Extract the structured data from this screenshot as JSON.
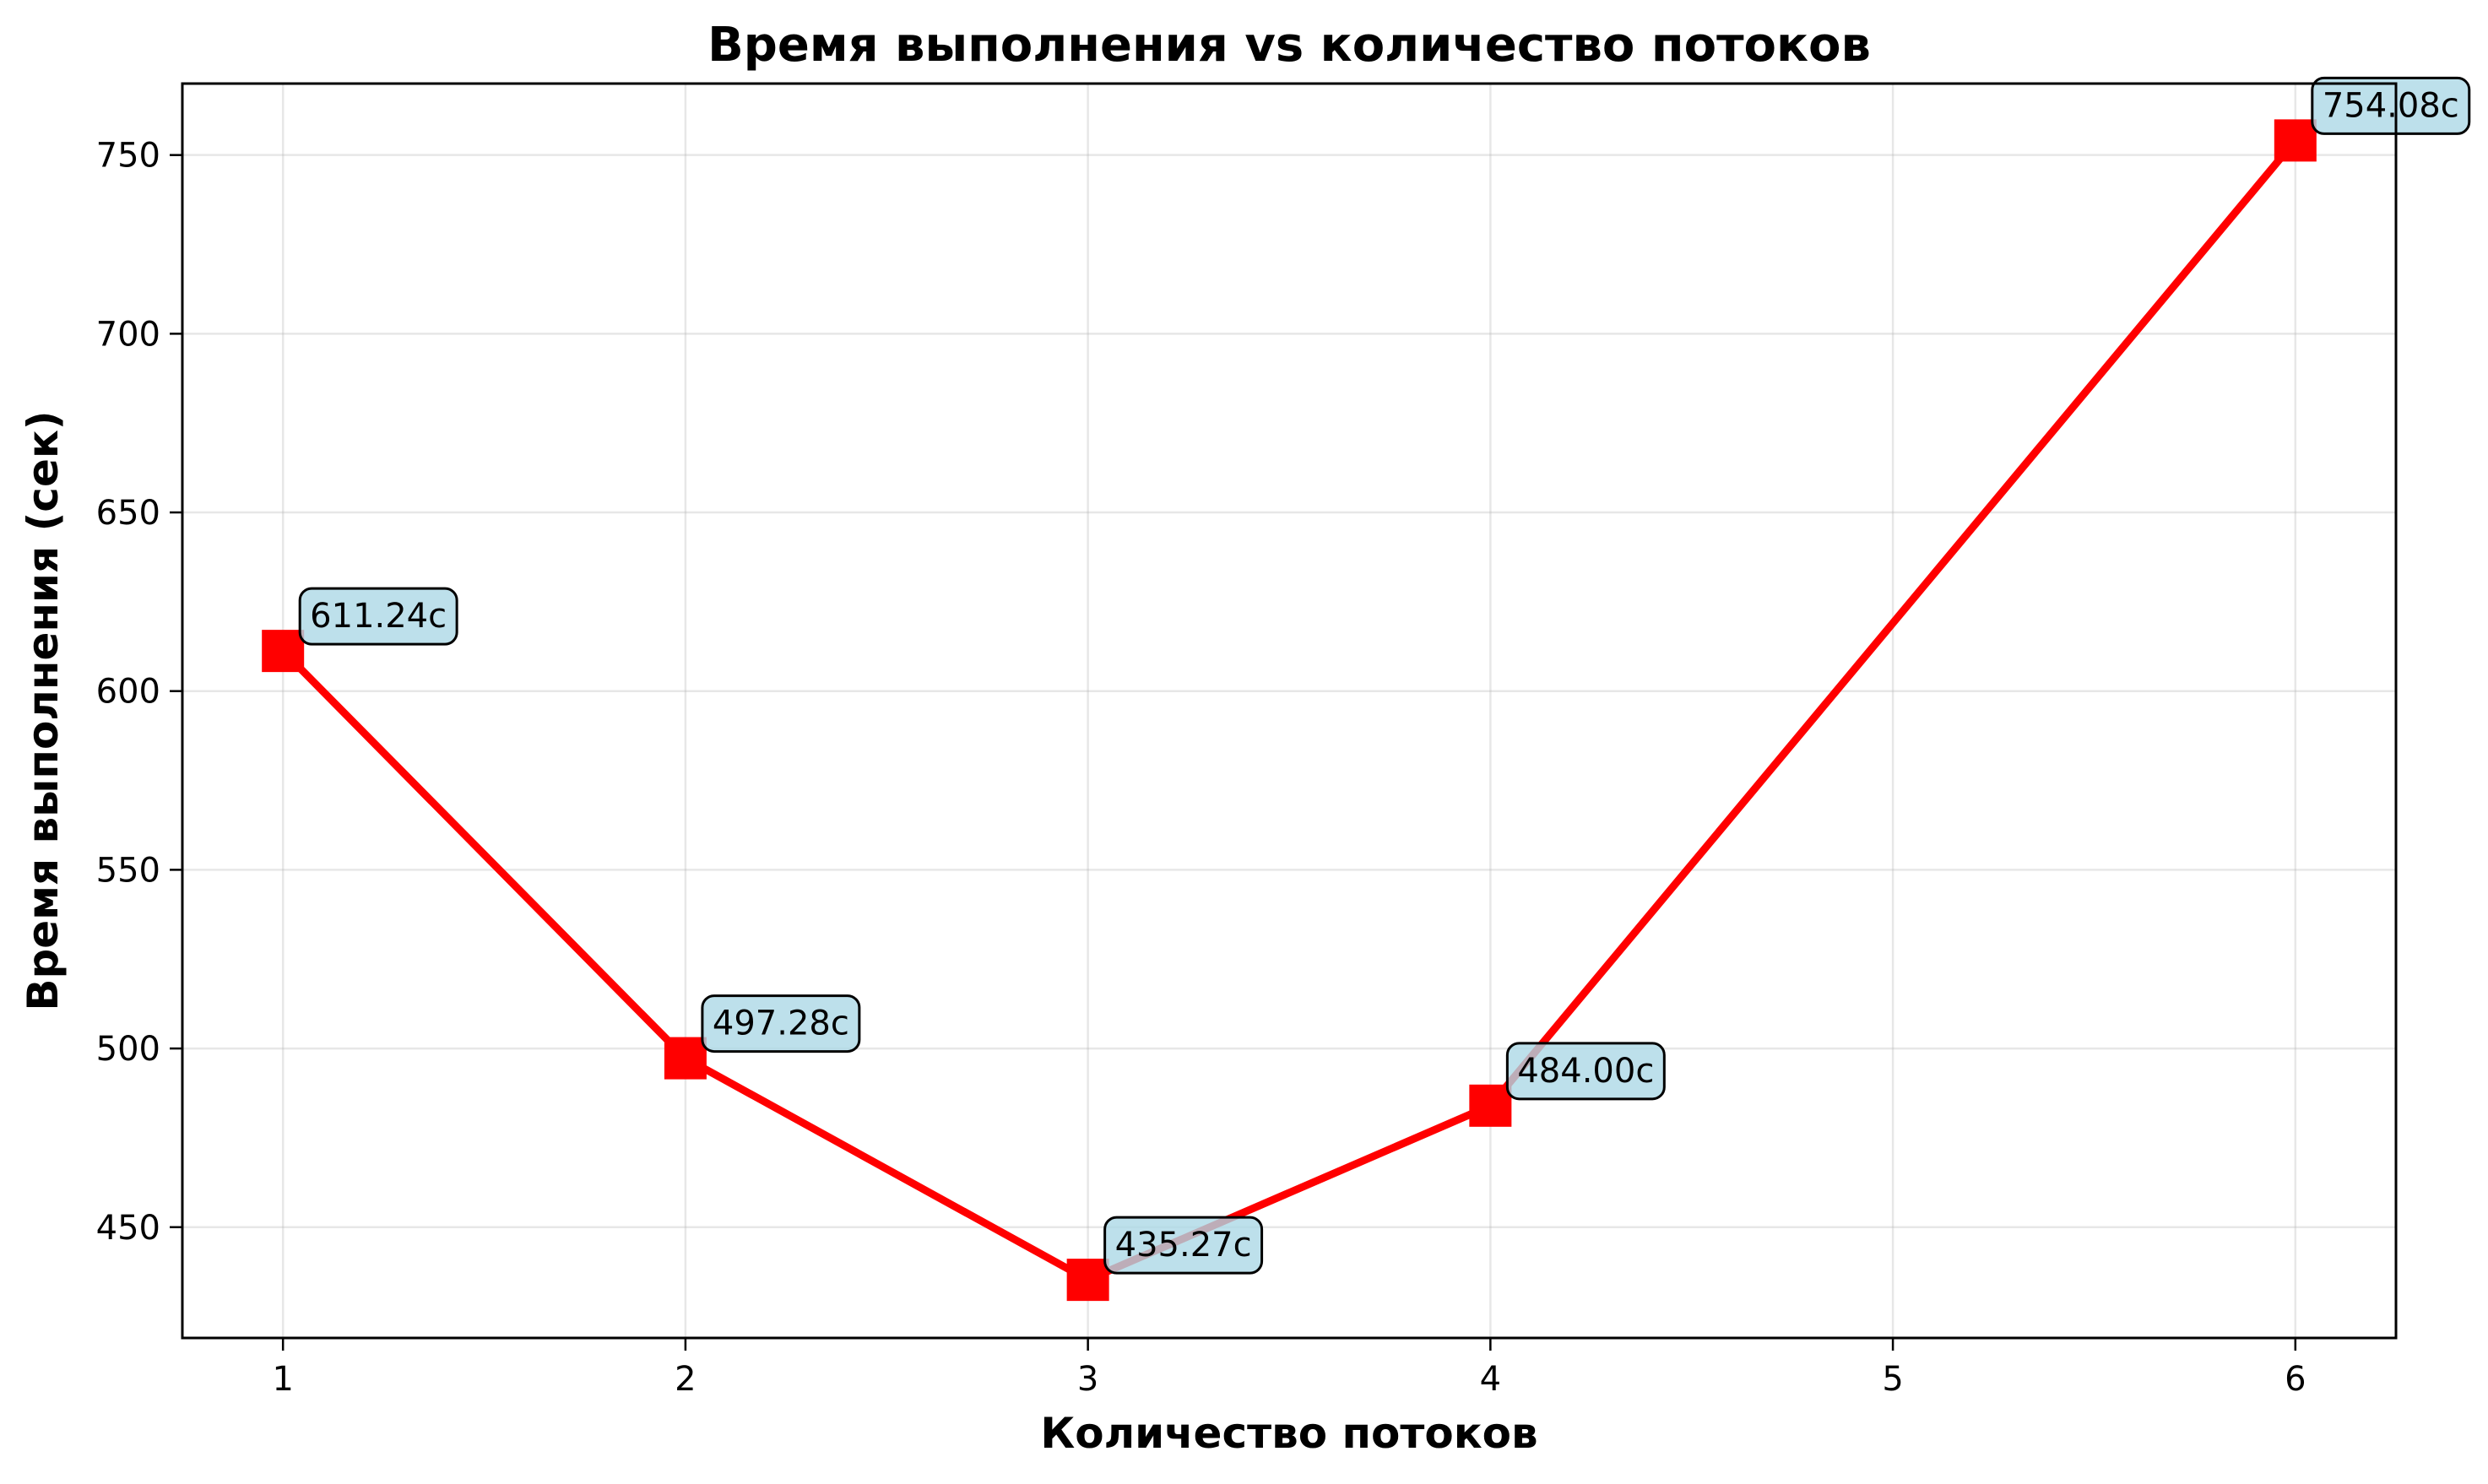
{
  "chart_data": {
    "type": "line",
    "title": "Время выполнения vs количество потоков",
    "xlabel": "Количество потоков",
    "ylabel": "Время выполнения (сек)",
    "xlim": [
      0.75,
      6.25
    ],
    "ylim": [
      419,
      770
    ],
    "xticks": [
      1,
      2,
      3,
      4,
      5,
      6
    ],
    "yticks": [
      450,
      500,
      550,
      600,
      650,
      700,
      750
    ],
    "grid": true,
    "legend": "none",
    "series": [
      {
        "x": [
          1,
          2,
          3,
          4,
          6
        ],
        "y": [
          611.24,
          497.28,
          435.27,
          484.0,
          754.08
        ],
        "labels": [
          "611.24с",
          "497.28с",
          "435.27с",
          "484.00с",
          "754.08с"
        ],
        "color": "#ff0000",
        "marker": "square"
      }
    ],
    "annotation_box_color": "#add8e6"
  }
}
